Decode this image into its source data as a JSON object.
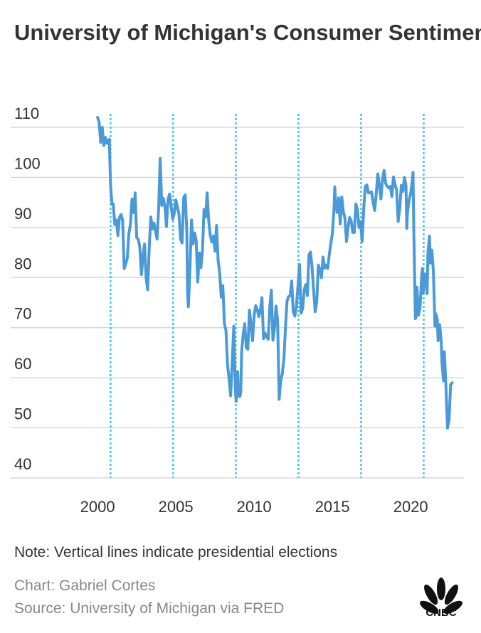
{
  "chart_data": {
    "type": "line",
    "title": "University of Michigan's Consumer Sentiment Index",
    "note": "Note: Vertical lines indicate presidential elections",
    "credit": "Chart: Gabriel Cortes",
    "source": "Source: University of Michigan via FRED",
    "logo": "CNBC",
    "color": "#4a9ad8",
    "election_color": "#3cc8e6",
    "elections": [
      2000.83,
      2004.83,
      2008.83,
      2012.83,
      2016.83,
      2020.83
    ],
    "x": [
      2000.0,
      2000.1,
      2000.2,
      2000.3,
      2000.4,
      2000.5,
      2000.6,
      2000.75,
      2000.83,
      2000.92,
      2001.0,
      2001.1,
      2001.2,
      2001.3,
      2001.4,
      2001.5,
      2001.6,
      2001.7,
      2001.8,
      2001.9,
      2002.0,
      2002.1,
      2002.2,
      2002.3,
      2002.4,
      2002.5,
      2002.6,
      2002.7,
      2002.8,
      2002.9,
      2003.0,
      2003.1,
      2003.2,
      2003.3,
      2003.4,
      2003.5,
      2003.6,
      2003.7,
      2003.8,
      2003.9,
      2004.0,
      2004.1,
      2004.2,
      2004.3,
      2004.4,
      2004.5,
      2004.6,
      2004.7,
      2004.8,
      2004.9,
      2005.0,
      2005.1,
      2005.2,
      2005.3,
      2005.4,
      2005.5,
      2005.6,
      2005.7,
      2005.75,
      2005.8,
      2005.9,
      2006.0,
      2006.1,
      2006.2,
      2006.3,
      2006.4,
      2006.5,
      2006.6,
      2006.7,
      2006.8,
      2006.9,
      2007.0,
      2007.1,
      2007.2,
      2007.3,
      2007.4,
      2007.5,
      2007.6,
      2007.7,
      2007.8,
      2007.9,
      2008.0,
      2008.1,
      2008.2,
      2008.3,
      2008.4,
      2008.5,
      2008.6,
      2008.7,
      2008.8,
      2008.85,
      2008.95,
      2009.0,
      2009.1,
      2009.15,
      2009.2,
      2009.3,
      2009.4,
      2009.5,
      2009.6,
      2009.7,
      2009.8,
      2009.9,
      2010.0,
      2010.1,
      2010.2,
      2010.3,
      2010.4,
      2010.5,
      2010.6,
      2010.7,
      2010.8,
      2010.9,
      2011.0,
      2011.1,
      2011.2,
      2011.3,
      2011.4,
      2011.5,
      2011.55,
      2011.6,
      2011.7,
      2011.8,
      2011.9,
      2012.0,
      2012.1,
      2012.2,
      2012.3,
      2012.4,
      2012.5,
      2012.6,
      2012.7,
      2012.8,
      2012.9,
      2013.0,
      2013.1,
      2013.2,
      2013.3,
      2013.4,
      2013.5,
      2013.6,
      2013.7,
      2013.8,
      2013.9,
      2014.0,
      2014.1,
      2014.2,
      2014.3,
      2014.4,
      2014.5,
      2014.6,
      2014.7,
      2014.8,
      2014.9,
      2015.0,
      2015.1,
      2015.15,
      2015.2,
      2015.3,
      2015.4,
      2015.5,
      2015.6,
      2015.7,
      2015.8,
      2015.9,
      2016.0,
      2016.1,
      2016.2,
      2016.3,
      2016.4,
      2016.5,
      2016.6,
      2016.7,
      2016.8,
      2016.9,
      2017.0,
      2017.1,
      2017.2,
      2017.3,
      2017.4,
      2017.5,
      2017.6,
      2017.7,
      2017.8,
      2017.9,
      2018.0,
      2018.1,
      2018.2,
      2018.3,
      2018.4,
      2018.5,
      2018.6,
      2018.7,
      2018.8,
      2018.9,
      2019.0,
      2019.1,
      2019.2,
      2019.3,
      2019.4,
      2019.5,
      2019.6,
      2019.7,
      2019.75,
      2019.8,
      2019.9,
      2020.0,
      2020.1,
      2020.15,
      2020.2,
      2020.3,
      2020.35,
      2020.4,
      2020.5,
      2020.6,
      2020.7,
      2020.75,
      2020.8,
      2020.9,
      2021.0,
      2021.05,
      2021.1,
      2021.2,
      2021.25,
      2021.35,
      2021.45,
      2021.55,
      2021.6,
      2021.7,
      2021.75,
      2021.85,
      2021.95,
      2022.0,
      2022.1,
      2022.15,
      2022.25,
      2022.35,
      2022.45,
      2022.55,
      2022.65
    ],
    "values": [
      112,
      111,
      107,
      110,
      106.4,
      108,
      106.8,
      107.6,
      98.4,
      94.7,
      94.7,
      90.6,
      91.5,
      88.4,
      92,
      92.6,
      91.5,
      81.8,
      82.7,
      83.9,
      88.8,
      90.7,
      95.7,
      93,
      96.9,
      88,
      87.6,
      86.1,
      80.6,
      84.2,
      86.7,
      79.9,
      77.6,
      86,
      92.1,
      89.7,
      90.9,
      89.3,
      87.7,
      93.7,
      103.8,
      94.4,
      95.8,
      94.2,
      90.2,
      95.6,
      96.7,
      94.2,
      91.7,
      92.8,
      95.5,
      94.1,
      92.6,
      87.7,
      86.9,
      96,
      96.5,
      89.1,
      76.9,
      74.2,
      81.6,
      91.5,
      86.7,
      88.9,
      87.4,
      79.1,
      84.9,
      82,
      85.4,
      93.6,
      92.1,
      96.9,
      91.3,
      88.4,
      87.1,
      88.3,
      85.3,
      90.4,
      83.4,
      80.9,
      76.1,
      78.4,
      70.8,
      69.5,
      62.6,
      59.8,
      56.4,
      63,
      70.3,
      57.6,
      55.3,
      61.2,
      56.3,
      56.3,
      57.3,
      65.1,
      68.7,
      70.8,
      66,
      65.7,
      73.5,
      70.6,
      67.4,
      72.5,
      74.4,
      73.6,
      72.2,
      73.6,
      76,
      67.8,
      68.9,
      68.2,
      67.7,
      74.2,
      77.5,
      67.5,
      69.8,
      74.3,
      71.5,
      63.7,
      55.7,
      59.5,
      60.8,
      63.7,
      69.9,
      75.3,
      76.2,
      76.4,
      79.3,
      73.2,
      72.3,
      74.3,
      78.3,
      82.6,
      72.9,
      73.8,
      77.6,
      78.6,
      76.4,
      84.5,
      85.1,
      82.1,
      77.5,
      73.2,
      75.1,
      82.5,
      81.6,
      80,
      84.1,
      81.9,
      82.5,
      81.8,
      84.6,
      86.9,
      88.8,
      93.6,
      98.1,
      95.4,
      93,
      95.9,
      90.7,
      96.1,
      93.1,
      91.9,
      87.2,
      90,
      92,
      91.3,
      89,
      89,
      94.7,
      93.5,
      90,
      91.2,
      87.2,
      93.8,
      98.2,
      98.5,
      96.9,
      97,
      97.1,
      95,
      93.4,
      96.8,
      100.7,
      98.5,
      95.7,
      99.7,
      101.4,
      98.8,
      98.2,
      97.9,
      98.2,
      96.2,
      100.1,
      98.6,
      97.5,
      91.2,
      93.8,
      98.4,
      97.2,
      100,
      98.4,
      89.8,
      93.2,
      95.5,
      96.8,
      99.3,
      101,
      89.1,
      71.8,
      72.3,
      78.1,
      72.5,
      74.1,
      80.4,
      81.8,
      76.9,
      80.7,
      79,
      76.8,
      84.9,
      88.3,
      82.9,
      85.5,
      81.2,
      70.3,
      72.8,
      71.7,
      67.4,
      70.6,
      67.2,
      62.8,
      59.4,
      65.2,
      58.4,
      50,
      51.5,
      58.6,
      59
    ],
    "xlim": [
      1994.45,
      2023.4
    ],
    "ylim": [
      40,
      110
    ],
    "xticks": [
      2000,
      2005,
      2010,
      2015,
      2020
    ],
    "yticks": [
      40,
      50,
      60,
      70,
      80,
      90,
      100,
      110
    ],
    "grid": true
  }
}
